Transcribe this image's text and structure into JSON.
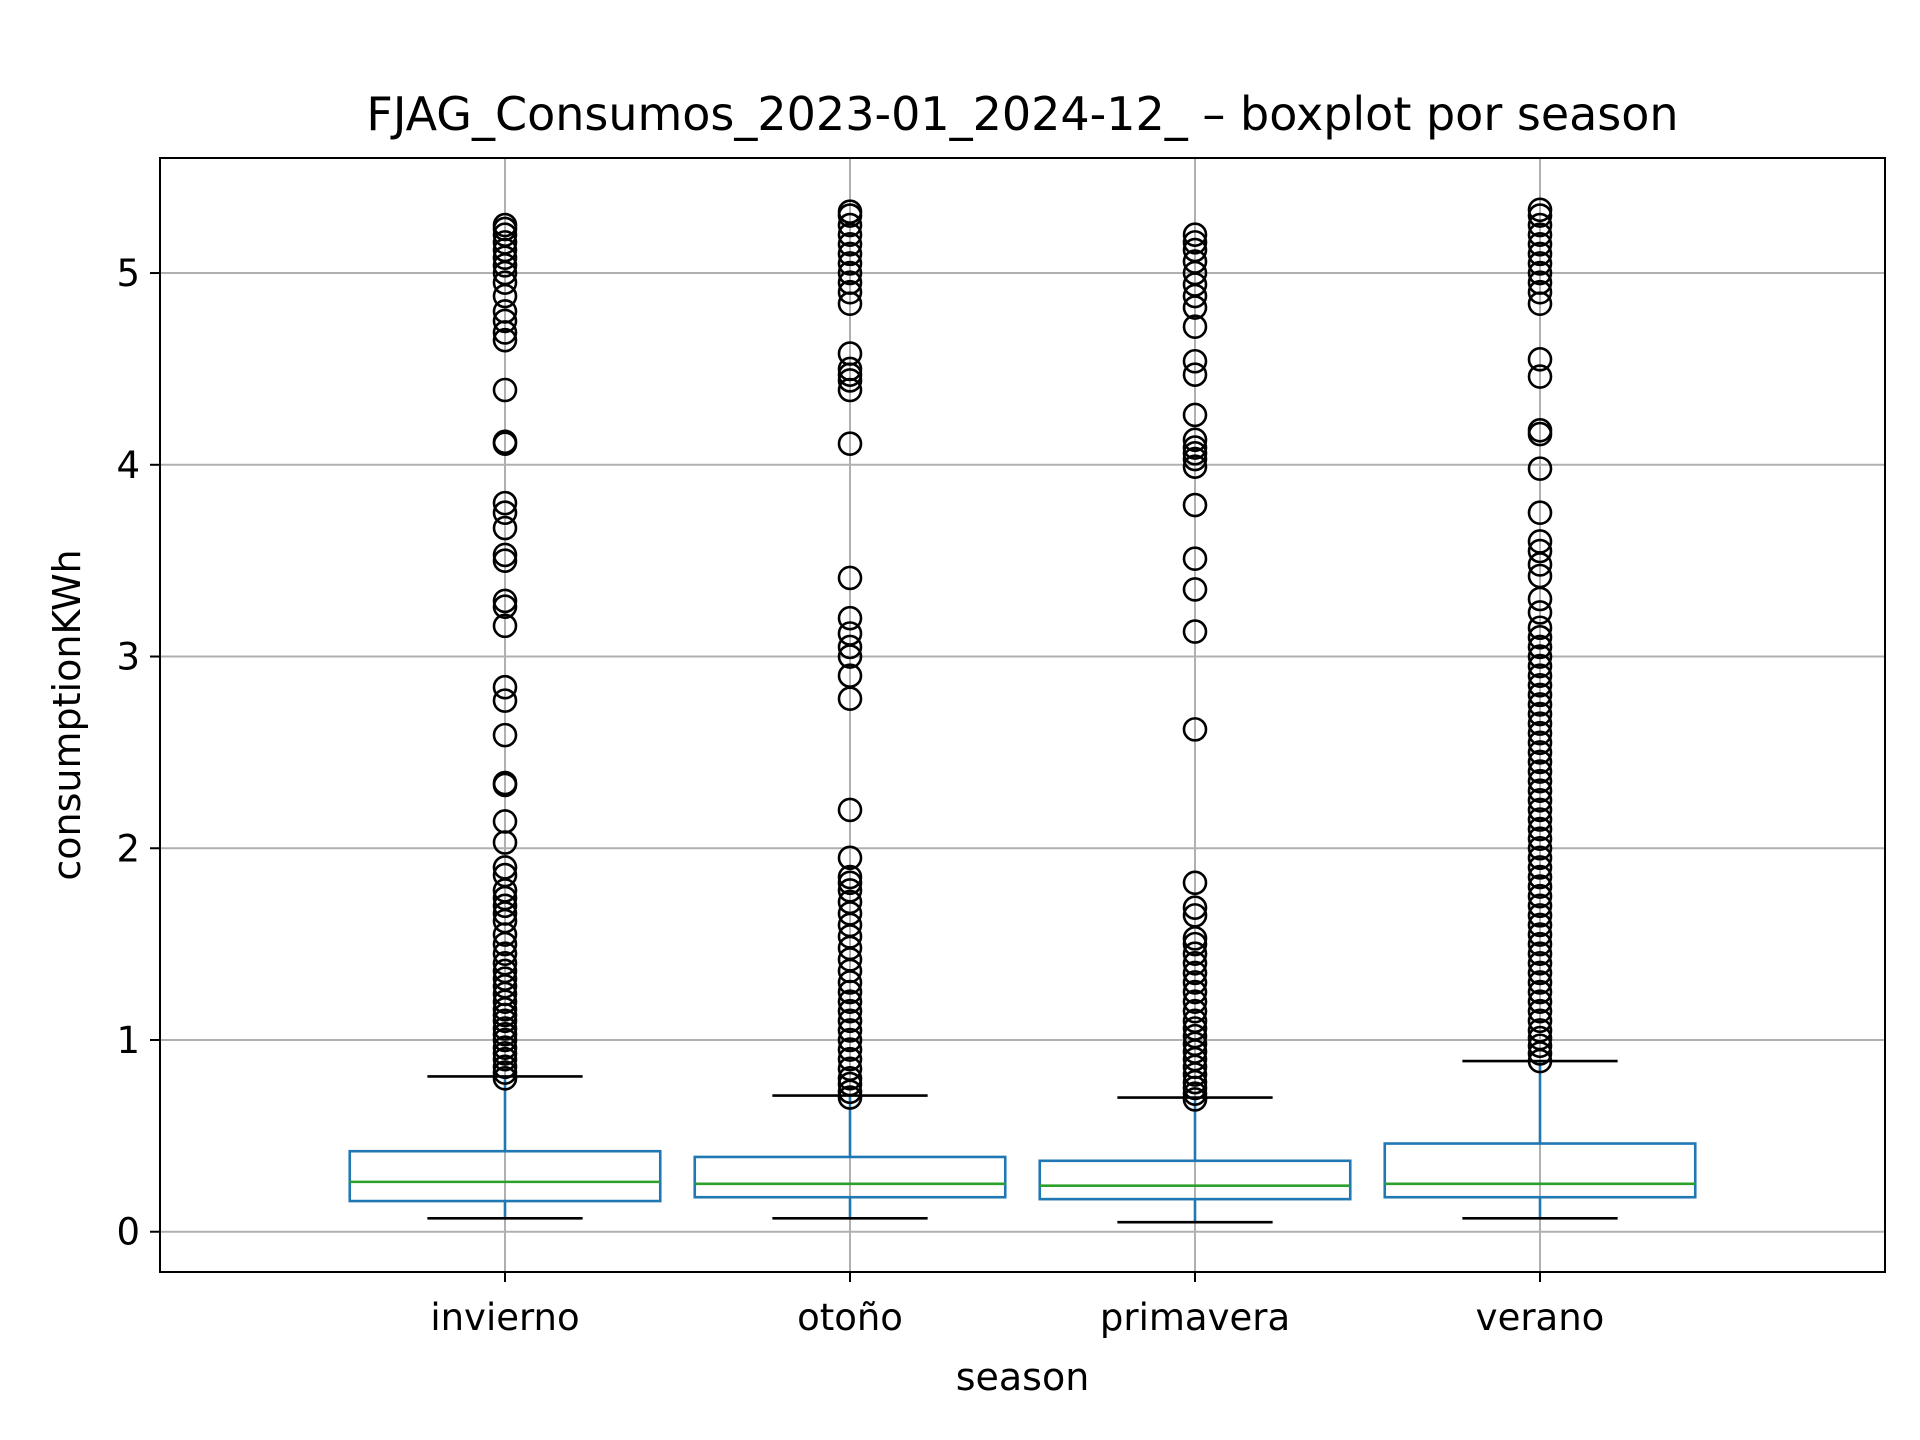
{
  "chart_data": {
    "type": "box",
    "title": "FJAG_Consumos_2023-01_2024-12_ – boxplot por season",
    "xlabel": "season",
    "ylabel": "consumptionKWh",
    "categories": [
      "invierno",
      "otoño",
      "primavera",
      "verano"
    ],
    "yticks": [
      0,
      1,
      2,
      3,
      4,
      5
    ],
    "ylim": [
      -0.21,
      5.6
    ],
    "grid": true,
    "colors": {
      "box": "#1f77b4",
      "median": "#2ca02c",
      "whisker_cap": "#000000",
      "flier": "#000000",
      "grid": "#b0b0b0"
    },
    "boxes": [
      {
        "category": "invierno",
        "whisker_low": 0.07,
        "q1": 0.16,
        "median": 0.26,
        "q3": 0.42,
        "whisker_high": 0.81,
        "fliers": [
          0.8,
          0.83,
          0.86,
          0.9,
          0.93,
          0.96,
          1.0,
          1.03,
          1.06,
          1.1,
          1.13,
          1.16,
          1.2,
          1.24,
          1.28,
          1.32,
          1.36,
          1.4,
          1.45,
          1.5,
          1.55,
          1.62,
          1.66,
          1.7,
          1.74,
          1.78,
          1.86,
          1.9,
          2.03,
          2.14,
          2.33,
          2.34,
          2.59,
          2.77,
          2.84,
          3.16,
          3.26,
          3.29,
          3.5,
          3.53,
          3.67,
          3.75,
          3.8,
          4.11,
          4.12,
          4.39,
          4.65,
          4.69,
          4.75,
          4.8,
          4.88,
          4.95,
          5.0,
          5.04,
          5.08,
          5.12,
          5.16,
          5.2,
          5.23,
          5.25
        ]
      },
      {
        "category": "otoño",
        "whisker_low": 0.07,
        "q1": 0.18,
        "median": 0.25,
        "q3": 0.39,
        "whisker_high": 0.71,
        "fliers": [
          0.7,
          0.73,
          0.77,
          0.8,
          0.85,
          0.9,
          0.95,
          1.0,
          1.05,
          1.1,
          1.15,
          1.2,
          1.25,
          1.3,
          1.36,
          1.42,
          1.48,
          1.54,
          1.6,
          1.66,
          1.72,
          1.78,
          1.82,
          1.85,
          1.95,
          2.2,
          2.78,
          2.9,
          3.0,
          3.05,
          3.12,
          3.2,
          3.41,
          4.11,
          4.39,
          4.44,
          4.47,
          4.5,
          4.58,
          4.84,
          4.9,
          4.95,
          5.0,
          5.05,
          5.1,
          5.15,
          5.2,
          5.25,
          5.3,
          5.32
        ]
      },
      {
        "category": "primavera",
        "whisker_low": 0.05,
        "q1": 0.17,
        "median": 0.24,
        "q3": 0.37,
        "whisker_high": 0.7,
        "fliers": [
          0.69,
          0.72,
          0.75,
          0.78,
          0.82,
          0.86,
          0.9,
          0.94,
          0.98,
          1.02,
          1.06,
          1.1,
          1.15,
          1.2,
          1.25,
          1.3,
          1.35,
          1.4,
          1.45,
          1.5,
          1.53,
          1.65,
          1.69,
          1.82,
          2.62,
          3.13,
          3.35,
          3.51,
          3.79,
          3.99,
          4.03,
          4.06,
          4.09,
          4.13,
          4.26,
          4.47,
          4.54,
          4.72,
          4.82,
          4.88,
          4.94,
          5.0,
          5.06,
          5.12,
          5.16,
          5.2
        ]
      },
      {
        "category": "verano",
        "whisker_low": 0.07,
        "q1": 0.18,
        "median": 0.25,
        "q3": 0.46,
        "whisker_high": 0.89,
        "fliers": [
          0.89,
          0.93,
          0.97,
          1.01,
          1.05,
          1.1,
          1.15,
          1.2,
          1.25,
          1.3,
          1.35,
          1.4,
          1.45,
          1.5,
          1.55,
          1.6,
          1.65,
          1.7,
          1.75,
          1.8,
          1.85,
          1.9,
          1.95,
          2.0,
          2.05,
          2.1,
          2.15,
          2.2,
          2.25,
          2.3,
          2.35,
          2.4,
          2.45,
          2.5,
          2.55,
          2.6,
          2.65,
          2.7,
          2.75,
          2.8,
          2.85,
          2.9,
          2.95,
          3.0,
          3.05,
          3.1,
          3.15,
          3.23,
          3.3,
          3.42,
          3.48,
          3.55,
          3.6,
          3.75,
          3.98,
          4.16,
          4.18,
          4.46,
          4.55,
          4.84,
          4.9,
          4.95,
          5.0,
          5.05,
          5.1,
          5.15,
          5.2,
          5.25,
          5.3,
          5.33
        ]
      }
    ]
  }
}
